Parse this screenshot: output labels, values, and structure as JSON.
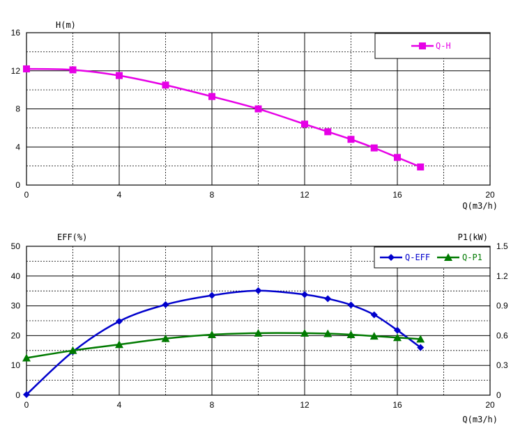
{
  "chart_data": [
    {
      "type": "line",
      "title": "",
      "ylabel": "H(m)",
      "xlabel": "Q(m3/h)",
      "xlim": [
        0,
        20
      ],
      "ylim": [
        0,
        16
      ],
      "xticks": [
        "0",
        "4",
        "8",
        "12",
        "16",
        "20"
      ],
      "yticks": [
        "0",
        "4",
        "8",
        "12",
        "16"
      ],
      "grid": true,
      "legend_position": "top-right",
      "series": [
        {
          "name": "Q-H",
          "color": "#e600e6",
          "marker": "square",
          "x": [
            0,
            2,
            4,
            6,
            8,
            10,
            12,
            13,
            14,
            15,
            16,
            17
          ],
          "y": [
            12.2,
            12.1,
            11.5,
            10.5,
            9.3,
            8.0,
            6.4,
            5.6,
            4.8,
            3.9,
            2.9,
            1.9
          ]
        }
      ]
    },
    {
      "type": "line",
      "title": "",
      "ylabel": "EFF(%)",
      "y2label": "P1(kW)",
      "xlabel": "Q(m3/h)",
      "xlim": [
        0,
        20
      ],
      "ylim": [
        0,
        50
      ],
      "y2lim": [
        0,
        1.5
      ],
      "xticks": [
        "0",
        "4",
        "8",
        "12",
        "16",
        "20"
      ],
      "yticks": [
        "0",
        "10",
        "20",
        "30",
        "40",
        "50"
      ],
      "y2ticks": [
        "0",
        "0.3",
        "0.6",
        "0.9",
        "1.2",
        "1.5"
      ],
      "grid": true,
      "legend_position": "top-right",
      "series": [
        {
          "name": "Q-EFF",
          "color": "#0000cc",
          "marker": "diamond",
          "axis": "left",
          "x": [
            0,
            2,
            4,
            6,
            8,
            10,
            12,
            13,
            14,
            15,
            16,
            17
          ],
          "y": [
            0.2,
            14.6,
            24.8,
            30.4,
            33.5,
            35.1,
            33.8,
            32.4,
            30.3,
            27.0,
            21.8,
            16.0
          ]
        },
        {
          "name": "Q-P1",
          "color": "#007a00",
          "marker": "triangle",
          "axis": "right",
          "x": [
            0,
            2,
            4,
            6,
            8,
            10,
            12,
            13,
            14,
            15,
            16,
            17
          ],
          "y": [
            0.375,
            0.45,
            0.51,
            0.57,
            0.61,
            0.625,
            0.625,
            0.62,
            0.61,
            0.595,
            0.58,
            0.565
          ]
        }
      ]
    }
  ]
}
